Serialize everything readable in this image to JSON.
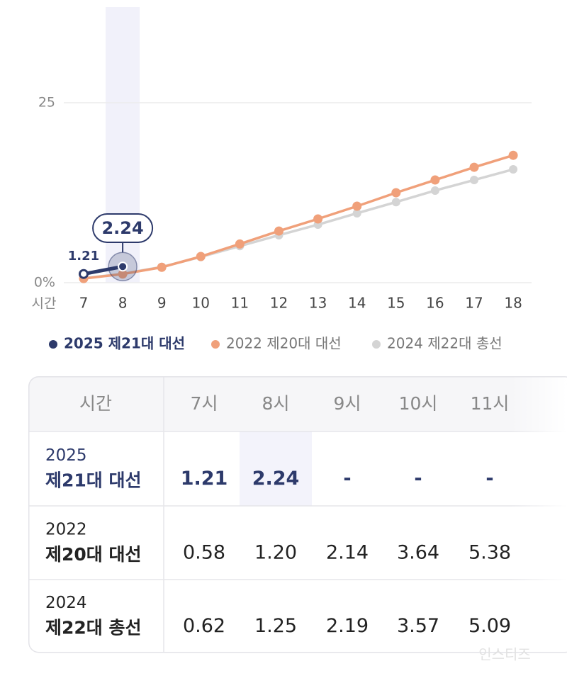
{
  "chart_data": {
    "type": "line",
    "x_label": "시간",
    "categories": [
      7,
      8,
      9,
      10,
      11,
      12,
      13,
      14,
      15,
      16,
      17,
      18
    ],
    "ylim": [
      0,
      38
    ],
    "yticks": [
      {
        "value": 0,
        "label": "0%"
      },
      25
    ],
    "grid": true,
    "series": [
      {
        "name": "2025 제21대 대선",
        "color": "#2d3a6b",
        "values": [
          1.21,
          2.24,
          null,
          null,
          null,
          null,
          null,
          null,
          null,
          null,
          null,
          null
        ]
      },
      {
        "name": "2022 제20대 대선",
        "color": "#f0a07a",
        "values": [
          0.58,
          1.2,
          2.14,
          3.64,
          5.38,
          7.18,
          8.86,
          10.63,
          12.5,
          14.27,
          16.04,
          17.7
        ]
      },
      {
        "name": "2024 제22대 총선",
        "color": "#d4d4d4",
        "values": [
          0.62,
          1.25,
          2.19,
          3.57,
          5.09,
          6.6,
          8.07,
          9.65,
          11.2,
          12.8,
          14.27,
          15.75
        ]
      }
    ]
  },
  "table": {
    "header": [
      "시간",
      "7시",
      "8시",
      "9시",
      "10시",
      "11시"
    ],
    "rows": [
      {
        "year": "2025",
        "name": "제21대 대선",
        "cells": [
          "1.21",
          "2.24",
          "-",
          "-",
          "-"
        ]
      },
      {
        "year": "2022",
        "name": "제20대 대선",
        "cells": [
          "0.58",
          "1.20",
          "2.14",
          "3.64",
          "5.38"
        ]
      },
      {
        "year": "2024",
        "name": "제22대 총선",
        "cells": [
          "0.62",
          "1.25",
          "2.19",
          "3.57",
          "5.09"
        ]
      }
    ]
  },
  "watermark": "인스티즈"
}
